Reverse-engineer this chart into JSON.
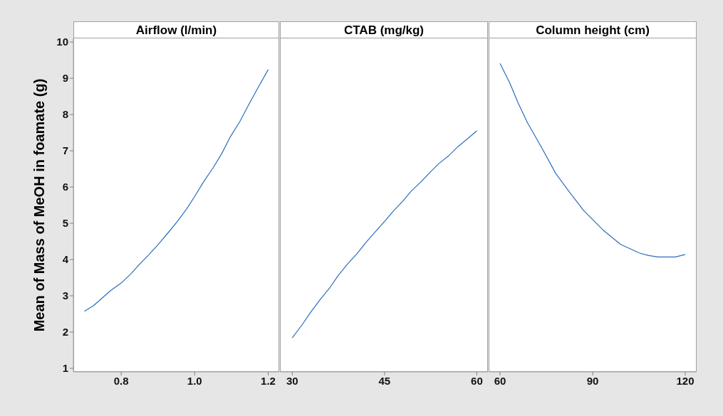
{
  "chart_data": [
    {
      "type": "line",
      "title": "Airflow (l/min)",
      "ylabel": "Mean of Mass of MeOH in foamate (g)",
      "color": "#2a6ebb",
      "x": [
        0.7,
        0.725,
        0.771,
        0.8,
        0.826,
        0.849,
        0.875,
        0.901,
        0.927,
        0.953,
        0.979,
        1.0,
        1.024,
        1.05,
        1.073,
        1.096,
        1.122,
        1.148,
        1.174,
        1.2
      ],
      "values": [
        2.57,
        2.73,
        3.14,
        3.35,
        3.6,
        3.86,
        4.13,
        4.42,
        4.73,
        5.05,
        5.41,
        5.74,
        6.14,
        6.53,
        6.91,
        7.37,
        7.79,
        8.29,
        8.77,
        9.24
      ],
      "xlim": [
        0.67,
        1.23
      ],
      "xticks": [
        {
          "value": 0.8,
          "label": "0.8"
        },
        {
          "value": 1.0,
          "label": "1.0"
        },
        {
          "value": 1.2,
          "label": "1.2"
        }
      ],
      "ylim": [
        0.9,
        10.1
      ],
      "yticks": [
        1,
        2,
        3,
        4,
        5,
        6,
        7,
        8,
        9,
        10
      ]
    },
    {
      "type": "line",
      "title": "CTAB (mg/kg)",
      "color": "#2a6ebb",
      "x": [
        30,
        31.56,
        32.93,
        34.5,
        36.06,
        37.43,
        39.0,
        40.56,
        42.13,
        43.69,
        45,
        46.4,
        47.97,
        49.34,
        50.9,
        52.47,
        53.84,
        55.4,
        56.97,
        58.53,
        60
      ],
      "values": [
        1.84,
        2.19,
        2.53,
        2.89,
        3.21,
        3.55,
        3.88,
        4.17,
        4.5,
        4.8,
        5.05,
        5.33,
        5.61,
        5.89,
        6.14,
        6.42,
        6.65,
        6.86,
        7.12,
        7.34,
        7.55
      ],
      "xlim": [
        28,
        61.8
      ],
      "xticks": [
        30,
        45,
        60
      ],
      "ylim": [
        0.9,
        10.1
      ],
      "yticks": [
        1,
        2,
        3,
        4,
        5,
        6,
        7,
        8,
        9,
        10
      ],
      "tick_labels": "x"
    },
    {
      "type": "line",
      "title": "Column height (cm)",
      "color": "#2a6ebb",
      "x": [
        60,
        63.2,
        65.9,
        68.9,
        73.4,
        78.0,
        82.4,
        87.1,
        93.3,
        99.0,
        105.1,
        108.2,
        111.3,
        116.8,
        120
      ],
      "values": [
        9.41,
        8.86,
        8.31,
        7.77,
        7.1,
        6.38,
        5.87,
        5.35,
        4.82,
        4.42,
        4.18,
        4.11,
        4.07,
        4.07,
        4.14
      ],
      "xlim": [
        56.3,
        123.7
      ],
      "xticks": [
        60,
        90,
        120
      ],
      "ylim": [
        0.9,
        10.1
      ],
      "yticks": [
        1,
        2,
        3,
        4,
        5,
        6,
        7,
        8,
        9,
        10
      ],
      "tick_labels": "x"
    }
  ]
}
